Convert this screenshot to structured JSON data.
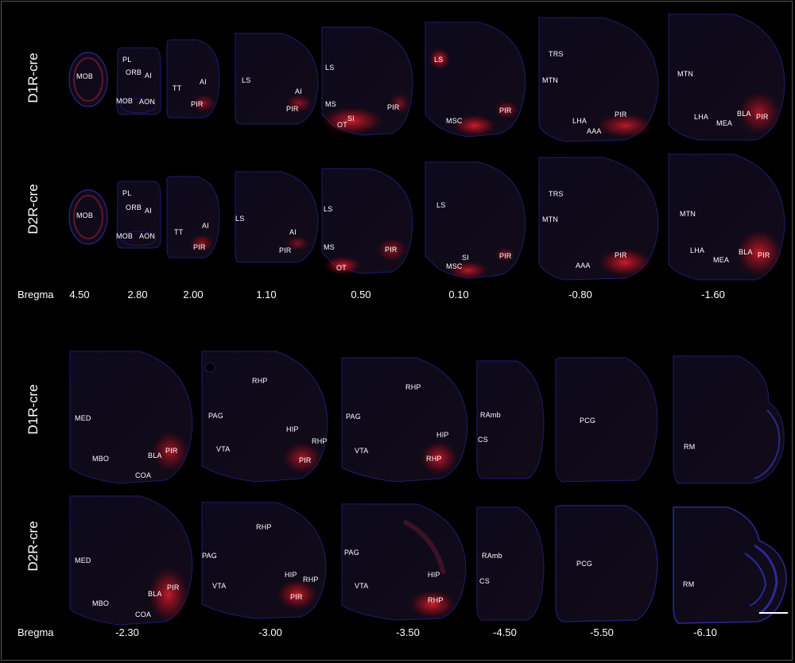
{
  "rows": {
    "d1_top": "D1R-cre",
    "d2_top": "D2R-cre",
    "d1_bottom": "D1R-cre",
    "d2_bottom": "D2R-cre"
  },
  "bregma": {
    "label_top": "Bregma",
    "label_bottom": "Bregma",
    "top": [
      "4.50",
      "2.80",
      "2.00",
      "1.10",
      "0.50",
      "0.10",
      "-0.80",
      "-1.60"
    ],
    "bottom": [
      "-2.30",
      "-3.00",
      "-3.50",
      "-4.50",
      "-5.50",
      "-6.10"
    ]
  },
  "regions": {
    "r1": {
      "s1": [
        "MOB"
      ],
      "s2": [
        "PL",
        "ORB",
        "AI",
        "MOB",
        "AON"
      ],
      "s3": [
        "TT",
        "AI",
        "PIR"
      ],
      "s4": [
        "LS",
        "AI",
        "PIR"
      ],
      "s5": [
        "LS",
        "MS",
        "SI",
        "OT",
        "PIR"
      ],
      "s6": [
        "LS",
        "MSC",
        "PIR"
      ],
      "s7": [
        "TRS",
        "MTN",
        "LHA",
        "AAA",
        "PIR"
      ],
      "s8": [
        "MTN",
        "LHA",
        "MEA",
        "BLA",
        "PIR"
      ]
    },
    "r2": {
      "s1": [
        "MOB"
      ],
      "s2": [
        "PL",
        "ORB",
        "AI",
        "MOB",
        "AON"
      ],
      "s3": [
        "TT",
        "AI",
        "PIR"
      ],
      "s4": [
        "LS",
        "AI",
        "PIR"
      ],
      "s5": [
        "LS",
        "MS",
        "OT",
        "PIR"
      ],
      "s6": [
        "LS",
        "SI",
        "MSC",
        "PIR"
      ],
      "s7": [
        "TRS",
        "MTN",
        "AAA",
        "PIR"
      ],
      "s8": [
        "MTN",
        "LHA",
        "MEA",
        "BLA",
        "PIR"
      ]
    },
    "r3": {
      "s1": [
        "MED",
        "MBO",
        "BLA",
        "PIR",
        "COA"
      ],
      "s2": [
        "RHP",
        "PAG",
        "HIP",
        "RHP",
        "VTA",
        "PIR"
      ],
      "s3": [
        "RHP",
        "PAG",
        "HIP",
        "VTA",
        "RHP"
      ],
      "s4": [
        "RAmb",
        "CS"
      ],
      "s5": [
        "PCG"
      ],
      "s6": [
        "RM"
      ]
    },
    "r4": {
      "s1": [
        "MED",
        "MBO",
        "BLA",
        "PIR",
        "COA"
      ],
      "s2": [
        "RHP",
        "PAG",
        "HIP",
        "RHP",
        "VTA",
        "PIR"
      ],
      "s3": [
        "PAG",
        "HIP",
        "VTA",
        "RHP"
      ],
      "s4": [
        "RAmb",
        "CS"
      ],
      "s5": [
        "PCG"
      ],
      "s6": [
        "RM"
      ]
    }
  }
}
